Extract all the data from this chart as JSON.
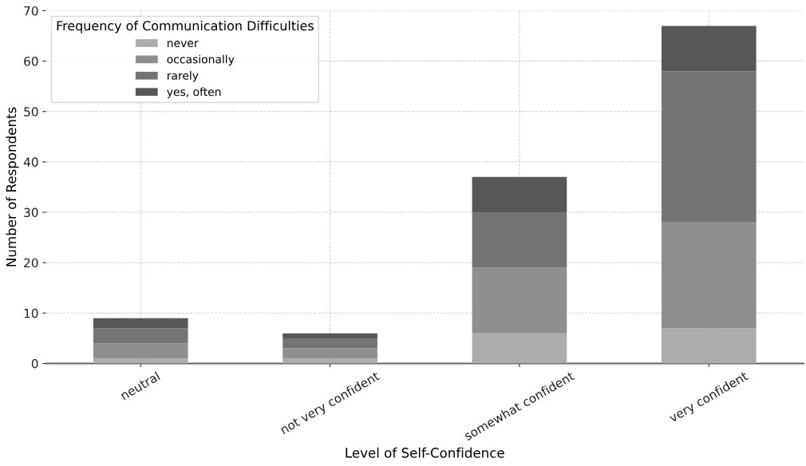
{
  "chart_data": {
    "type": "bar",
    "stacked": true,
    "xlabel": "Level of Self-Confidence",
    "ylabel": "Number of Respondents",
    "legend_title": "Frequency of Communication Difficulties",
    "legend": "top left",
    "grid": true,
    "categories": [
      "neutral",
      "not very confident",
      "somewhat confident",
      "very confident"
    ],
    "series": [
      {
        "name": "never",
        "color": "#acacac",
        "values": [
          1,
          1,
          6,
          7
        ]
      },
      {
        "name": "occasionally",
        "color": "#8f8f8f",
        "values": [
          3,
          2,
          13,
          21
        ]
      },
      {
        "name": "rarely",
        "color": "#747474",
        "values": [
          3,
          2,
          11,
          30
        ]
      },
      {
        "name": "yes, often",
        "color": "#575757",
        "values": [
          2,
          1,
          7,
          9
        ]
      }
    ],
    "ylim": [
      0,
      70
    ],
    "yticks": [
      0,
      10,
      20,
      30,
      40,
      50,
      60,
      70
    ]
  }
}
